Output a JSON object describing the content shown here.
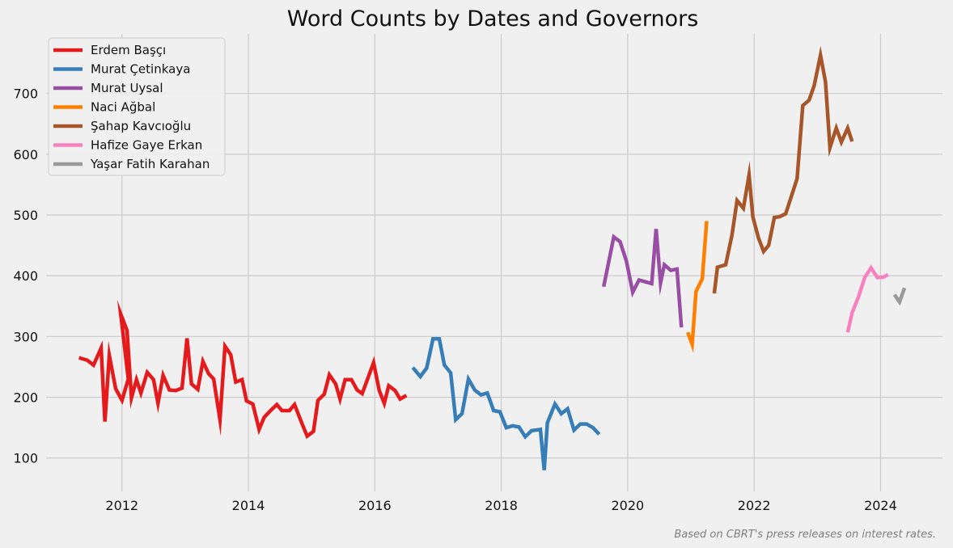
{
  "chart_data": {
    "type": "line",
    "title": "Word Counts by Dates and Governors",
    "xlabel": "",
    "ylabel": "",
    "xlim": [
      2010.8,
      2024.98
    ],
    "ylim": [
      45,
      798
    ],
    "x_ticks": [
      2012,
      2014,
      2016,
      2018,
      2020,
      2022,
      2024
    ],
    "y_ticks": [
      100,
      200,
      300,
      400,
      500,
      600,
      700
    ],
    "grid": true,
    "legend_position": "top-left",
    "caption": "Based on CBRT's press releases on interest rates.",
    "series": [
      {
        "name": "Erdem Başçı",
        "color": "#e41a1c",
        "points": [
          [
            2011.32,
            265
          ],
          [
            2011.45,
            261
          ],
          [
            2011.55,
            253
          ],
          [
            2011.67,
            281
          ],
          [
            2011.73,
            160
          ],
          [
            2011.8,
            269
          ],
          [
            2011.9,
            214
          ],
          [
            2012.0,
            195
          ],
          [
            2012.1,
            230
          ],
          [
            2011.98,
            337
          ],
          [
            2012.08,
            310
          ],
          [
            2012.15,
            199
          ],
          [
            2012.23,
            229
          ],
          [
            2012.3,
            207
          ],
          [
            2012.4,
            241
          ],
          [
            2012.5,
            229
          ],
          [
            2012.57,
            190
          ],
          [
            2012.65,
            236
          ],
          [
            2012.75,
            212
          ],
          [
            2012.85,
            211
          ],
          [
            2012.95,
            215
          ],
          [
            2013.03,
            297
          ],
          [
            2013.1,
            222
          ],
          [
            2013.2,
            213
          ],
          [
            2013.28,
            259
          ],
          [
            2013.37,
            239
          ],
          [
            2013.45,
            230
          ],
          [
            2013.55,
            163
          ],
          [
            2013.63,
            284
          ],
          [
            2013.72,
            270
          ],
          [
            2013.8,
            225
          ],
          [
            2013.9,
            229
          ],
          [
            2013.97,
            194
          ],
          [
            2014.07,
            189
          ],
          [
            2014.17,
            147
          ],
          [
            2014.25,
            167
          ],
          [
            2014.35,
            178
          ],
          [
            2014.45,
            188
          ],
          [
            2014.53,
            178
          ],
          [
            2014.65,
            178
          ],
          [
            2014.73,
            188
          ],
          [
            2014.85,
            156
          ],
          [
            2014.93,
            136
          ],
          [
            2015.03,
            144
          ],
          [
            2015.1,
            195
          ],
          [
            2015.2,
            205
          ],
          [
            2015.28,
            237
          ],
          [
            2015.38,
            222
          ],
          [
            2015.45,
            197
          ],
          [
            2015.53,
            229
          ],
          [
            2015.63,
            229
          ],
          [
            2015.72,
            212
          ],
          [
            2015.8,
            206
          ],
          [
            2015.9,
            234
          ],
          [
            2015.98,
            257
          ],
          [
            2016.07,
            211
          ],
          [
            2016.15,
            190
          ],
          [
            2016.22,
            219
          ],
          [
            2016.32,
            211
          ],
          [
            2016.4,
            197
          ],
          [
            2016.5,
            203
          ]
        ]
      },
      {
        "name": "Murat Çetinkaya",
        "color": "#377eb8",
        "points": [
          [
            2016.6,
            249
          ],
          [
            2016.72,
            234
          ],
          [
            2016.82,
            248
          ],
          [
            2016.92,
            296
          ],
          [
            2017.02,
            296
          ],
          [
            2017.1,
            253
          ],
          [
            2017.2,
            240
          ],
          [
            2017.28,
            163
          ],
          [
            2017.38,
            173
          ],
          [
            2017.48,
            230
          ],
          [
            2017.58,
            212
          ],
          [
            2017.68,
            204
          ],
          [
            2017.78,
            207
          ],
          [
            2017.88,
            178
          ],
          [
            2017.98,
            176
          ],
          [
            2018.08,
            150
          ],
          [
            2018.18,
            153
          ],
          [
            2018.28,
            151
          ],
          [
            2018.38,
            135
          ],
          [
            2018.48,
            145
          ],
          [
            2018.55,
            146
          ],
          [
            2018.62,
            147
          ],
          [
            2018.68,
            80
          ],
          [
            2018.73,
            158
          ],
          [
            2018.85,
            189
          ],
          [
            2018.95,
            173
          ],
          [
            2019.05,
            181
          ],
          [
            2019.15,
            146
          ],
          [
            2019.25,
            156
          ],
          [
            2019.35,
            156
          ],
          [
            2019.45,
            150
          ],
          [
            2019.55,
            139
          ]
        ]
      },
      {
        "name": "Murat Uysal",
        "color": "#984ea3",
        "points": [
          [
            2019.62,
            382
          ],
          [
            2019.78,
            464
          ],
          [
            2019.88,
            456
          ],
          [
            2019.98,
            424
          ],
          [
            2020.08,
            373
          ],
          [
            2020.18,
            393
          ],
          [
            2020.28,
            390
          ],
          [
            2020.38,
            387
          ],
          [
            2020.45,
            477
          ],
          [
            2020.52,
            388
          ],
          [
            2020.58,
            418
          ],
          [
            2020.68,
            409
          ],
          [
            2020.78,
            411
          ],
          [
            2020.85,
            315
          ]
        ]
      },
      {
        "name": "Naci Ağbal",
        "color": "#ff7f00",
        "points": [
          [
            2020.95,
            307
          ],
          [
            2021.02,
            287
          ],
          [
            2021.08,
            374
          ],
          [
            2021.18,
            395
          ],
          [
            2021.25,
            490
          ]
        ]
      },
      {
        "name": "Şahap Kavcıoğlu",
        "color": "#a65628",
        "points": [
          [
            2021.37,
            371
          ],
          [
            2021.42,
            414
          ],
          [
            2021.55,
            418
          ],
          [
            2021.65,
            467
          ],
          [
            2021.73,
            524
          ],
          [
            2021.83,
            511
          ],
          [
            2021.92,
            566
          ],
          [
            2021.98,
            497
          ],
          [
            2022.07,
            462
          ],
          [
            2022.15,
            440
          ],
          [
            2022.23,
            450
          ],
          [
            2022.32,
            496
          ],
          [
            2022.4,
            497
          ],
          [
            2022.5,
            502
          ],
          [
            2022.6,
            534
          ],
          [
            2022.68,
            560
          ],
          [
            2022.77,
            680
          ],
          [
            2022.87,
            689
          ],
          [
            2022.95,
            713
          ],
          [
            2023.05,
            763
          ],
          [
            2023.13,
            719
          ],
          [
            2023.2,
            611
          ],
          [
            2023.3,
            643
          ],
          [
            2023.38,
            620
          ],
          [
            2023.48,
            643
          ],
          [
            2023.55,
            621
          ]
        ]
      },
      {
        "name": "Hafize Gaye Erkan",
        "color": "#f781bf",
        "points": [
          [
            2023.48,
            307
          ],
          [
            2023.55,
            339
          ],
          [
            2023.65,
            365
          ],
          [
            2023.75,
            397
          ],
          [
            2023.85,
            413
          ],
          [
            2023.95,
            397
          ],
          [
            2024.05,
            398
          ],
          [
            2024.12,
            402
          ]
        ]
      },
      {
        "name": "Yaşar Fatih Karahan",
        "color": "#999999",
        "points": [
          [
            2024.22,
            369
          ],
          [
            2024.3,
            357
          ],
          [
            2024.38,
            380
          ]
        ]
      }
    ]
  }
}
